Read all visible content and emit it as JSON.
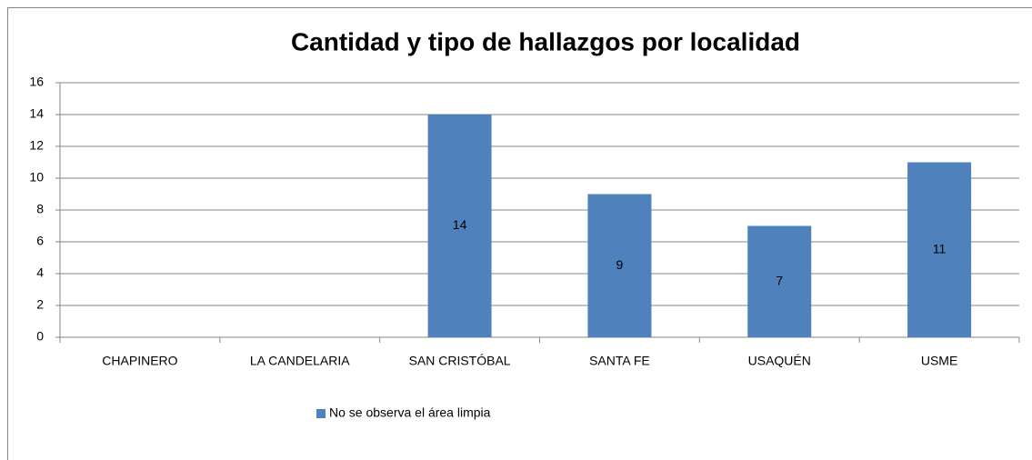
{
  "chart_data": {
    "type": "bar",
    "title": "Cantidad y tipo de hallazgos por localidad",
    "categories": [
      "CHAPINERO",
      "LA CANDELARIA",
      "SAN CRISTÓBAL",
      "SANTA FE",
      "USAQUÉN",
      "USME"
    ],
    "series": [
      {
        "name": "No se observa el área limpia",
        "color": "#4f81bd",
        "values": [
          null,
          null,
          14,
          9,
          7,
          11
        ]
      }
    ],
    "ylim": [
      0,
      16
    ],
    "yticks": [
      0,
      2,
      4,
      6,
      8,
      10,
      12,
      14,
      16
    ],
    "grid": true,
    "legend": "bottom"
  }
}
